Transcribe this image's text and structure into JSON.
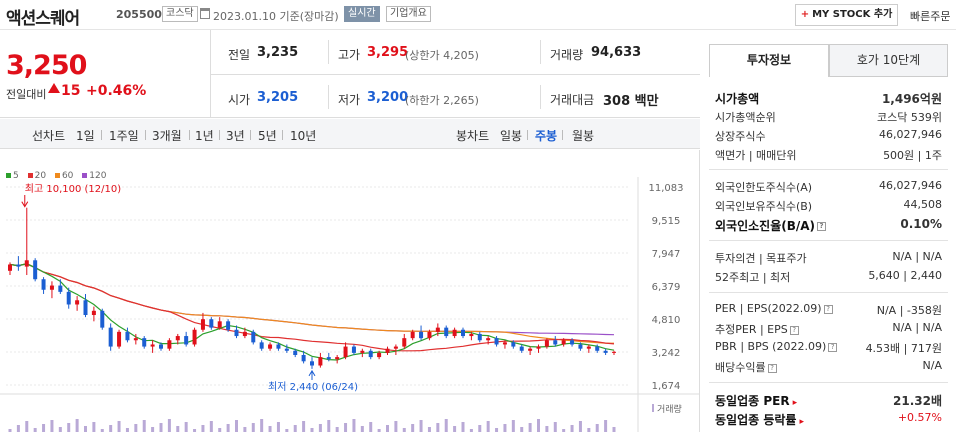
{
  "header": {
    "stock_name": "액션스퀘어",
    "stock_code": "205500",
    "market_badge": "코스닥",
    "date_text": "2023.01.10 기준(장마감)",
    "realtime_badge": "실시간",
    "company_badge": "기업개요",
    "mystock_label": "MY STOCK 추가",
    "quick_order": "빠른주문"
  },
  "price": {
    "current": "3,250",
    "diff_label": "전일대비",
    "diff": "15",
    "pct": "+0.46%"
  },
  "stats": {
    "prev_label": "전일",
    "prev": "3,235",
    "high_label": "고가",
    "high": "3,295",
    "upper_limit": "(상한가 4,205)",
    "volume_label": "거래량",
    "volume": "94,633",
    "open_label": "시가",
    "open": "3,205",
    "low_label": "저가",
    "low": "3,200",
    "lower_limit": "(하한가 2,265)",
    "amount_label": "거래대금",
    "amount": "308 백만"
  },
  "period_bar": {
    "line_chart": "선차트",
    "line_tabs": [
      "1일",
      "1주일",
      "3개월",
      "1년",
      "3년",
      "5년",
      "10년"
    ],
    "candle_chart": "봉차트",
    "candle_tabs": [
      "일봉",
      "주봉",
      "월봉"
    ],
    "candle_active": 1
  },
  "chart_data": {
    "type": "candlestick",
    "legend": [
      "5",
      "20",
      "60",
      "120"
    ],
    "colors": {
      "ma5": "#2ca02c",
      "ma20": "#e03030",
      "ma60": "#ef8a1d",
      "ma120": "#9a50c8",
      "up": "#e0101a",
      "down": "#1b5ed2"
    },
    "y_ticks": [
      "11,083",
      "9,515",
      "7,947",
      "6,379",
      "4,810",
      "3,242",
      "1,674"
    ],
    "y_range": [
      1674,
      11083
    ],
    "max_label": "최고 10,100 (12/10)",
    "min_label": "최저 2,440 (06/24)",
    "volume_label": "거래량",
    "candles": [
      [
        7100,
        7500,
        6900,
        7400
      ],
      [
        7400,
        7800,
        7100,
        7300
      ],
      [
        7300,
        10100,
        6900,
        7600
      ],
      [
        7600,
        7700,
        6600,
        6700
      ],
      [
        6700,
        6800,
        6000,
        6200
      ],
      [
        6200,
        6600,
        5800,
        6400
      ],
      [
        6400,
        6700,
        6000,
        6100
      ],
      [
        6100,
        6300,
        5300,
        5500
      ],
      [
        5500,
        5900,
        5200,
        5700
      ],
      [
        5700,
        6000,
        4900,
        5000
      ],
      [
        5000,
        5400,
        4700,
        5200
      ],
      [
        5200,
        5300,
        4300,
        4400
      ],
      [
        4400,
        4600,
        3300,
        3500
      ],
      [
        3500,
        4300,
        3400,
        4200
      ],
      [
        4200,
        4400,
        3700,
        3800
      ],
      [
        3800,
        4100,
        3600,
        3900
      ],
      [
        3900,
        4000,
        3400,
        3500
      ],
      [
        3500,
        3800,
        3200,
        3600
      ],
      [
        3600,
        3700,
        3300,
        3400
      ],
      [
        3400,
        3900,
        3300,
        3800
      ],
      [
        3800,
        4100,
        3600,
        4000
      ],
      [
        4000,
        4200,
        3500,
        3600
      ],
      [
        3600,
        4400,
        3500,
        4300
      ],
      [
        4300,
        5100,
        4200,
        4800
      ],
      [
        4800,
        4900,
        4300,
        4400
      ],
      [
        4400,
        4900,
        4300,
        4700
      ],
      [
        4700,
        4800,
        4200,
        4300
      ],
      [
        4300,
        4500,
        3900,
        4000
      ],
      [
        4000,
        4400,
        3900,
        4200
      ],
      [
        4200,
        4300,
        3600,
        3700
      ],
      [
        3700,
        3800,
        3300,
        3400
      ],
      [
        3400,
        3700,
        3300,
        3600
      ],
      [
        3600,
        3700,
        3300,
        3400
      ],
      [
        3400,
        3600,
        3200,
        3300
      ],
      [
        3300,
        3400,
        3000,
        3100
      ],
      [
        3100,
        3300,
        2700,
        2800
      ],
      [
        2800,
        3000,
        2440,
        2600
      ],
      [
        2600,
        3200,
        2500,
        3000
      ],
      [
        3000,
        3200,
        2800,
        2900
      ],
      [
        2900,
        3100,
        2700,
        3000
      ],
      [
        3000,
        3700,
        2900,
        3500
      ],
      [
        3500,
        3600,
        3100,
        3200
      ],
      [
        3200,
        3400,
        3000,
        3300
      ],
      [
        3300,
        3400,
        2900,
        3000
      ],
      [
        3000,
        3300,
        2900,
        3200
      ],
      [
        3200,
        3500,
        3100,
        3400
      ],
      [
        3400,
        3600,
        3100,
        3500
      ],
      [
        3500,
        4100,
        3400,
        3900
      ],
      [
        3900,
        4300,
        3800,
        4200
      ],
      [
        4200,
        4500,
        3800,
        3900
      ],
      [
        3900,
        4300,
        3800,
        4200
      ],
      [
        4200,
        4600,
        4000,
        4400
      ],
      [
        4400,
        4500,
        3900,
        4000
      ],
      [
        4000,
        4400,
        3900,
        4300
      ],
      [
        4300,
        4400,
        3900,
        4000
      ],
      [
        4000,
        4200,
        3800,
        4100
      ],
      [
        4100,
        4200,
        3700,
        3800
      ],
      [
        3800,
        4000,
        3600,
        3900
      ],
      [
        3900,
        4000,
        3500,
        3600
      ],
      [
        3600,
        3800,
        3400,
        3700
      ],
      [
        3700,
        3800,
        3400,
        3500
      ],
      [
        3500,
        3600,
        3200,
        3300
      ],
      [
        3300,
        3500,
        3100,
        3400
      ],
      [
        3400,
        3600,
        3200,
        3500
      ],
      [
        3500,
        3900,
        3400,
        3800
      ],
      [
        3800,
        4000,
        3500,
        3600
      ],
      [
        3600,
        3900,
        3500,
        3800
      ],
      [
        3800,
        3900,
        3500,
        3600
      ],
      [
        3600,
        3700,
        3300,
        3400
      ],
      [
        3400,
        3600,
        3200,
        3500
      ],
      [
        3500,
        3600,
        3200,
        3300
      ],
      [
        3300,
        3400,
        3100,
        3200
      ],
      [
        3200,
        3300,
        3100,
        3250
      ]
    ]
  },
  "side": {
    "tab_invest": "투자정보",
    "tab_hoga": "호가 10단계",
    "market_cap_label": "시가총액",
    "market_cap": "1,496억원",
    "cap_rank_label": "시가총액순위",
    "cap_rank": "코스닥 539위",
    "shares_label": "상장주식수",
    "shares": "46,027,946",
    "par_label": "액면가 | 매매단위",
    "par": "500원 | 1주",
    "foreign_limit_label": "외국인한도주식수(A)",
    "foreign_limit": "46,027,946",
    "foreign_hold_label": "외국인보유주식수(B)",
    "foreign_hold": "44,508",
    "foreign_ratio_label": "외국인소진율(B/A)",
    "foreign_ratio": "0.10%",
    "opinion_label": "투자의견 | 목표주가",
    "opinion": "N/A | N/A",
    "week52_label": "52주최고 | 최저",
    "week52": "5,640 | 2,440",
    "per_label": "PER | EPS(2022.09)",
    "per": "N/A | -358원",
    "est_per_label": "추정PER | EPS",
    "est_per": "N/A | N/A",
    "pbr_label": "PBR | BPS (2022.09)",
    "pbr": "4.53배 | 717원",
    "dividend_label": "배당수익률",
    "dividend": "N/A",
    "sector_per_label": "동일업종 PER",
    "sector_per": "21.32배",
    "sector_rate_label": "동일업종 등락률",
    "sector_rate": "+0.57%"
  }
}
